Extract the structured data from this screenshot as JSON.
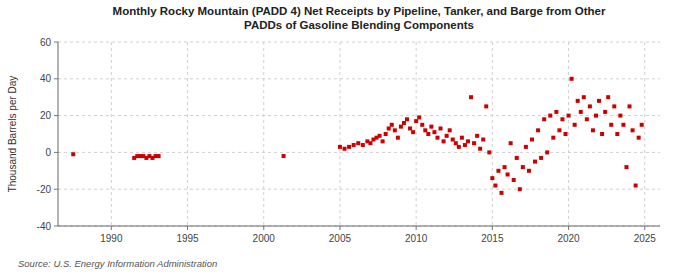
{
  "chart_data": {
    "type": "scatter",
    "title": "Monthly Rocky Mountain (PADD 4) Net Receipts by Pipeline, Tanker, and Barge from Other\nPADDs of Gasoline Blending Components",
    "ylabel": "Thousand Barrels per Day",
    "source": "Source: U.S. Energy Information Administration",
    "color": "#cc0000",
    "marker": "square",
    "grid": true,
    "xlim": [
      1986.5,
      2026
    ],
    "ylim": [
      -40,
      60
    ],
    "xticks": [
      1990,
      1995,
      2000,
      2005,
      2010,
      2015,
      2020,
      2025
    ],
    "yticks": [
      -40,
      -20,
      0,
      20,
      40,
      60
    ],
    "x": [
      1987.5,
      1991.5,
      1991.7,
      1991.9,
      1992.1,
      1992.3,
      1992.5,
      1992.7,
      1992.9,
      1993.1,
      2001.3,
      2005.0,
      2005.3,
      2005.6,
      2005.9,
      2006.2,
      2006.5,
      2006.8,
      2007.0,
      2007.2,
      2007.4,
      2007.6,
      2007.8,
      2008.0,
      2008.2,
      2008.4,
      2008.6,
      2008.8,
      2009.0,
      2009.2,
      2009.4,
      2009.6,
      2009.8,
      2010.0,
      2010.2,
      2010.4,
      2010.6,
      2010.8,
      2011.0,
      2011.2,
      2011.4,
      2011.6,
      2011.8,
      2012.0,
      2012.2,
      2012.4,
      2012.6,
      2012.8,
      2013.0,
      2013.2,
      2013.4,
      2013.6,
      2013.8,
      2014.0,
      2014.2,
      2014.4,
      2014.6,
      2014.8,
      2015.0,
      2015.2,
      2015.4,
      2015.6,
      2015.8,
      2016.0,
      2016.2,
      2016.4,
      2016.6,
      2016.8,
      2017.0,
      2017.2,
      2017.4,
      2017.6,
      2017.8,
      2018.0,
      2018.2,
      2018.4,
      2018.6,
      2018.8,
      2019.0,
      2019.2,
      2019.4,
      2019.6,
      2019.8,
      2020.0,
      2020.2,
      2020.4,
      2020.6,
      2020.8,
      2021.0,
      2021.2,
      2021.4,
      2021.6,
      2021.8,
      2022.0,
      2022.2,
      2022.4,
      2022.6,
      2022.8,
      2023.0,
      2023.2,
      2023.4,
      2023.6,
      2023.8,
      2024.0,
      2024.2,
      2024.4,
      2024.6,
      2024.8
    ],
    "values": [
      -1,
      -3,
      -2,
      -2,
      -2,
      -3,
      -2,
      -3,
      -2,
      -2,
      -2,
      3,
      2,
      3,
      4,
      5,
      4,
      6,
      5,
      7,
      8,
      9,
      6,
      10,
      13,
      15,
      12,
      8,
      14,
      16,
      18,
      13,
      11,
      17,
      19,
      15,
      12,
      10,
      14,
      11,
      8,
      13,
      6,
      9,
      12,
      7,
      5,
      3,
      8,
      4,
      6,
      30,
      5,
      9,
      2,
      7,
      25,
      0,
      -14,
      -18,
      -10,
      -22,
      -8,
      -12,
      5,
      -15,
      -3,
      -20,
      -8,
      3,
      -10,
      7,
      -5,
      12,
      -3,
      18,
      0,
      20,
      8,
      22,
      12,
      18,
      10,
      20,
      40,
      15,
      28,
      22,
      30,
      18,
      25,
      12,
      20,
      28,
      10,
      22,
      30,
      15,
      25,
      10,
      20,
      15,
      -8,
      25,
      12,
      -18,
      8,
      15
    ]
  }
}
